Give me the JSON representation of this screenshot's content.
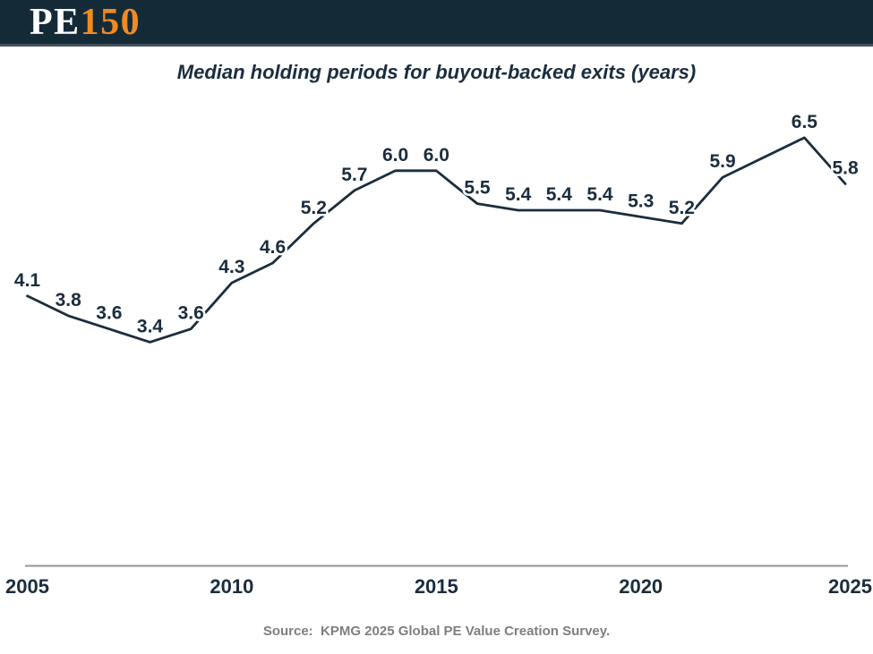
{
  "header": {
    "logo_pe": "PE",
    "logo_150": "150"
  },
  "chart_data": {
    "type": "line",
    "title": "Median holding periods for buyout-backed exits (years)",
    "points": [
      {
        "year": 2005,
        "value": 4.1,
        "label": "4.1"
      },
      {
        "year": 2006,
        "value": 3.8,
        "label": "3.8"
      },
      {
        "year": 2007,
        "value": 3.6,
        "label": "3.6"
      },
      {
        "year": 2008,
        "value": 3.4,
        "label": "3.4"
      },
      {
        "year": 2009,
        "value": 3.6,
        "label": "3.6"
      },
      {
        "year": 2010,
        "value": 4.3,
        "label": "4.3"
      },
      {
        "year": 2011,
        "value": 4.6,
        "label": "4.6"
      },
      {
        "year": 2012,
        "value": 5.2,
        "label": "5.2"
      },
      {
        "year": 2013,
        "value": 5.7,
        "label": "5.7"
      },
      {
        "year": 2014,
        "value": 6.0,
        "label": "6.0"
      },
      {
        "year": 2015,
        "value": 6.0,
        "label": "6.0"
      },
      {
        "year": 2016,
        "value": 5.5,
        "label": "5.5"
      },
      {
        "year": 2017,
        "value": 5.4,
        "label": "5.4"
      },
      {
        "year": 2018,
        "value": 5.4,
        "label": "5.4"
      },
      {
        "year": 2019,
        "value": 5.4,
        "label": "5.4"
      },
      {
        "year": 2020,
        "value": 5.3,
        "label": "5.3"
      },
      {
        "year": 2021,
        "value": 5.2,
        "label": "5.2"
      },
      {
        "year": 2022,
        "value": 5.9,
        "label": "5.9"
      },
      {
        "year": 2024,
        "value": 6.5,
        "label": "6.5"
      },
      {
        "year": 2025,
        "value": 5.8,
        "label": "5.8"
      }
    ],
    "x_ticks": [
      "2005",
      "2010",
      "2015",
      "2020",
      "2025"
    ],
    "x_range": [
      2005,
      2025
    ],
    "ylim": [
      0,
      7
    ],
    "grid": false,
    "legend": "none",
    "data_labels": true
  },
  "source": {
    "text": "Source:  KPMG 2025 Global PE Value Creation Survey."
  },
  "colors": {
    "bg": "#FFFFFF",
    "header_bg": "#142B37",
    "header_strip": "#42505A",
    "logo_white": "#FFFFFF",
    "accent_orange": "#EF8B22",
    "ink": "#1B2D3D",
    "axis_gray": "#969696",
    "source_gray": "#7D7F81"
  }
}
